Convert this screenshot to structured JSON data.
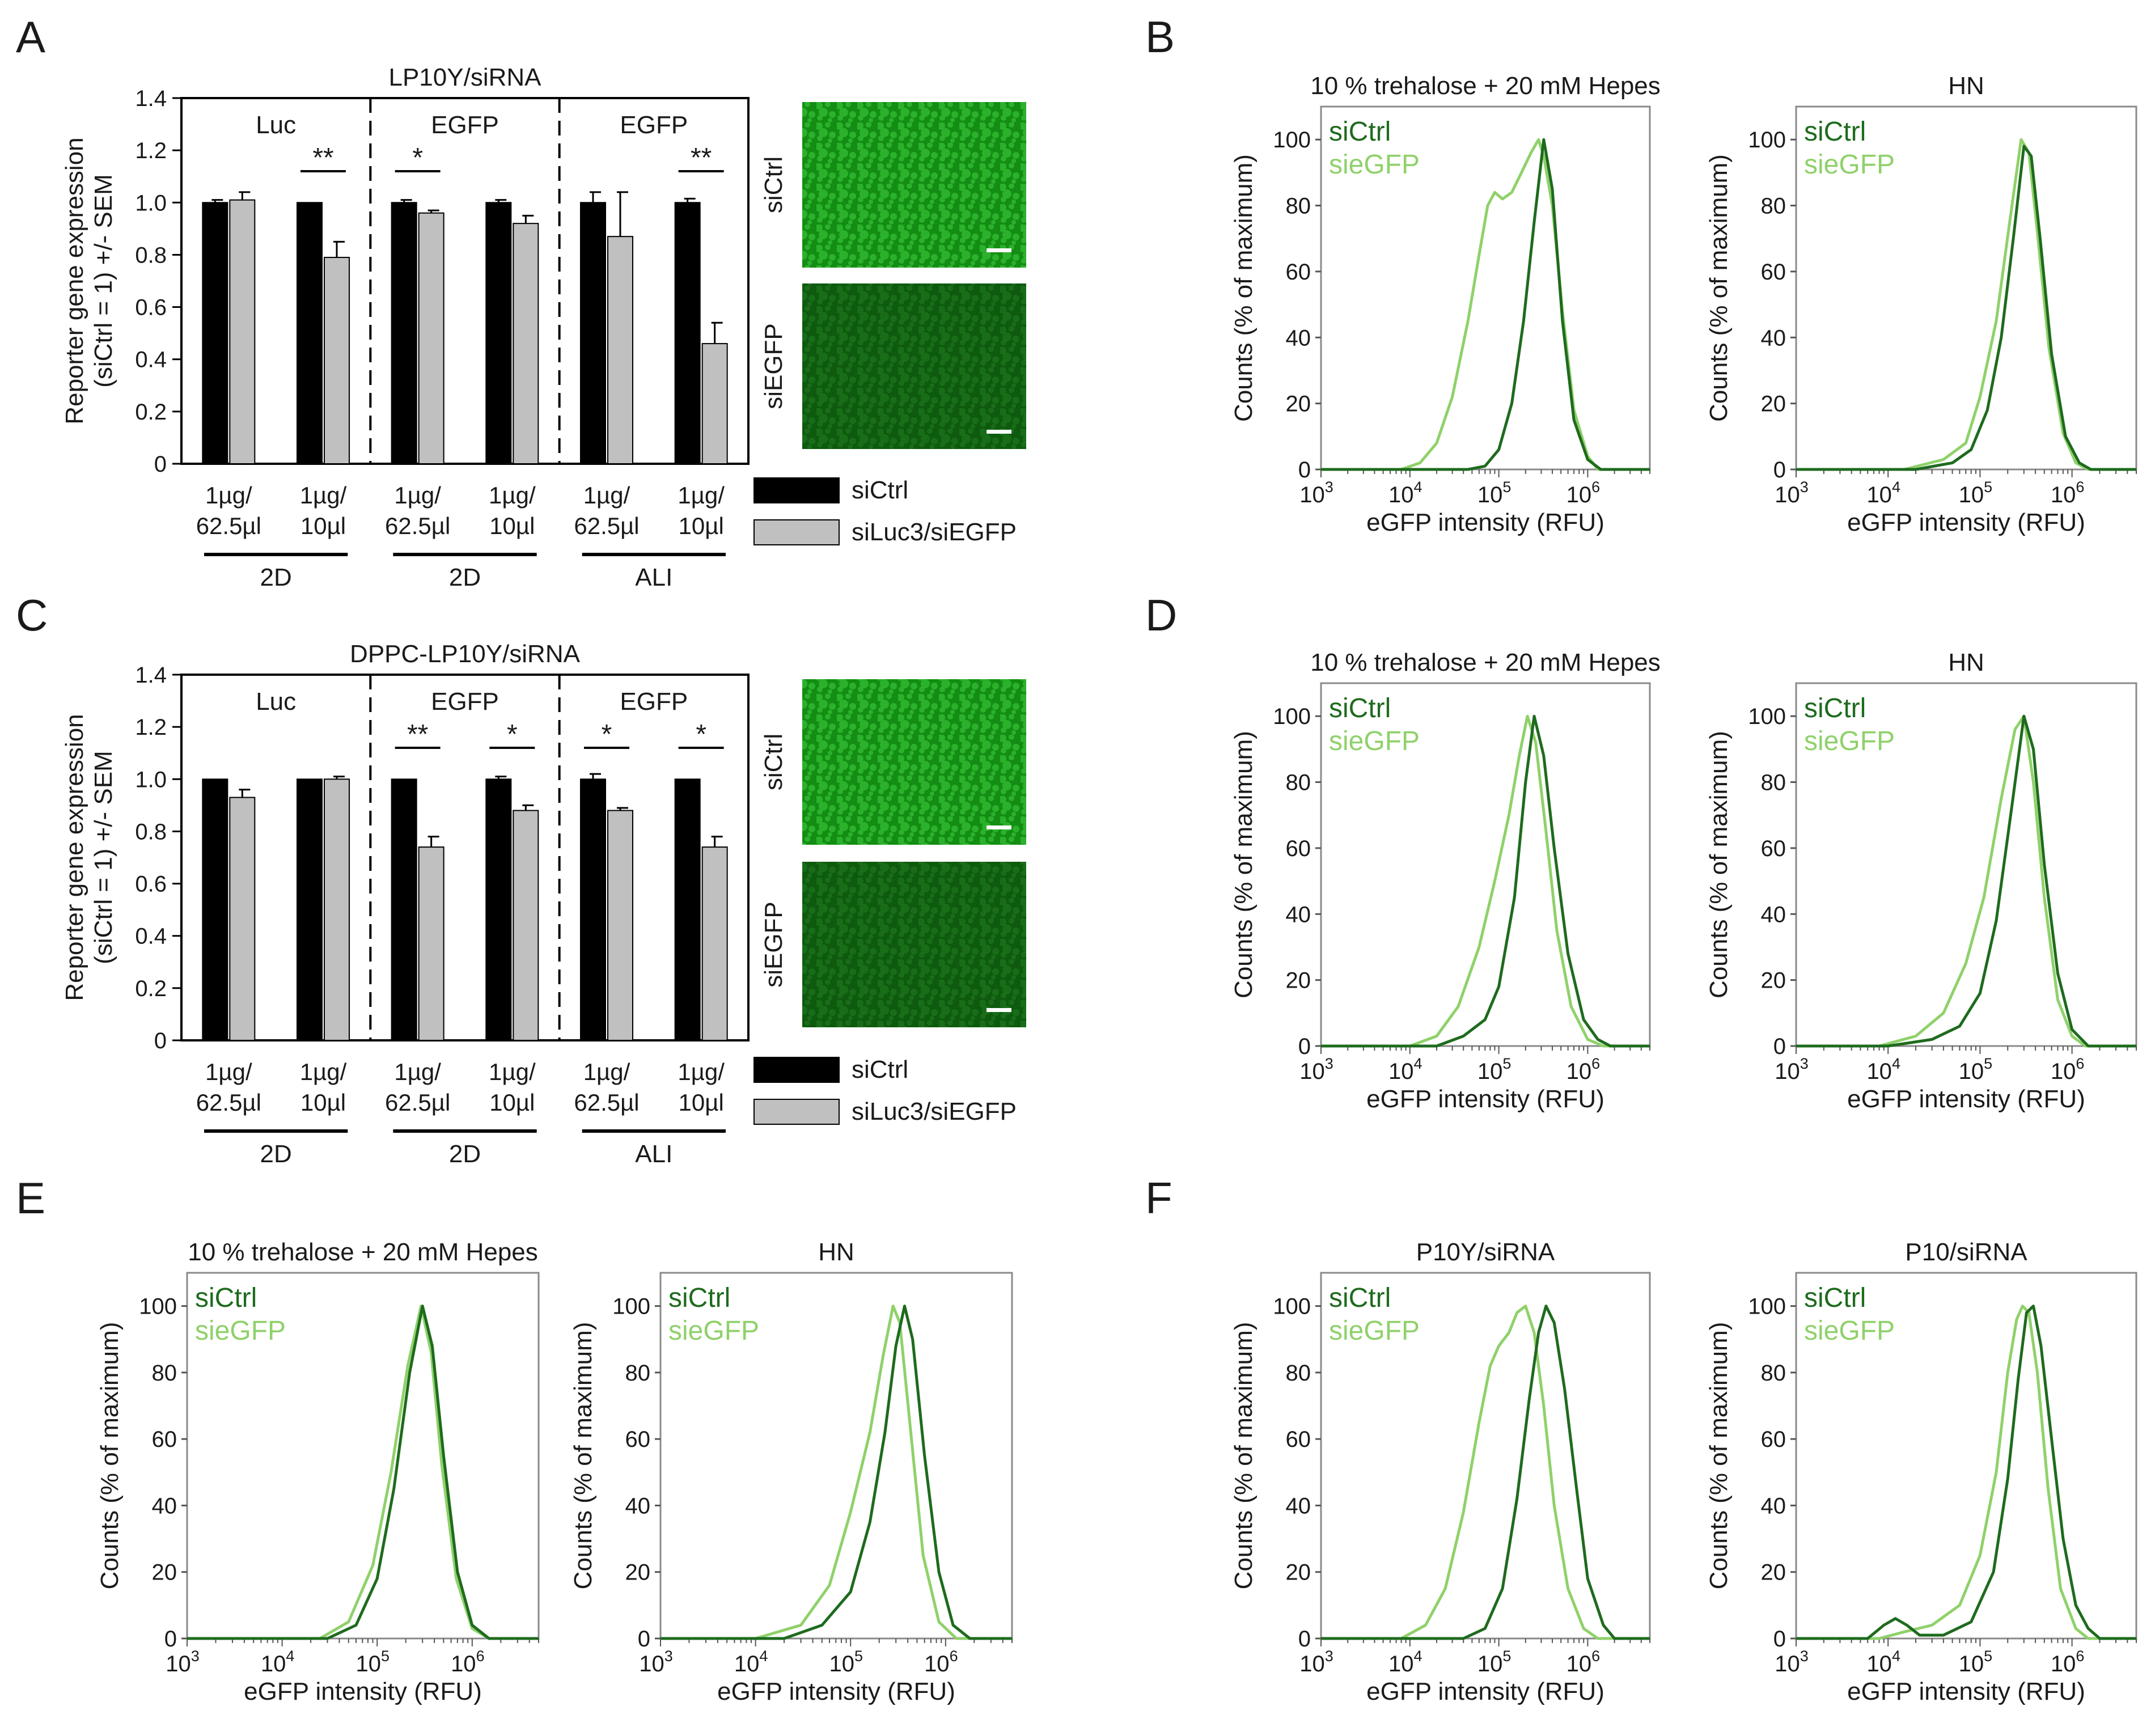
{
  "figure": {
    "panel_labels": [
      "A",
      "B",
      "C",
      "D",
      "E",
      "F"
    ]
  },
  "colors": {
    "bar_ctrl": "#000000",
    "bar_si": "#c0c0c0",
    "line_ctrl": "#1e6b1e",
    "line_si": "#8fd16a",
    "micrograph_bright": "#2fb82f",
    "micrograph_dim": "#1f7a1f"
  },
  "chart_data": [
    {
      "panel": "A",
      "type": "bar",
      "title": "LP10Y/siRNA",
      "ylabel": "Reporter gene expression (siCtrl = 1) +/- SEM",
      "ylabel_lines": [
        "Reporter gene expression",
        "(siCtrl = 1) +/- SEM"
      ],
      "ylim": [
        0,
        1.4
      ],
      "yticks": [
        "0",
        "0.2",
        "0.4",
        "0.6",
        "0.8",
        "1.0",
        "1.2",
        "1.4"
      ],
      "section_headers": [
        "Luc",
        "EGFP",
        "EGFP"
      ],
      "categories": [
        {
          "line1": "1µg/",
          "line2": "62.5µl"
        },
        {
          "line1": "1µg/",
          "line2": "10µl"
        },
        {
          "line1": "1µg/",
          "line2": "62.5µl"
        },
        {
          "line1": "1µg/",
          "line2": "10µl"
        },
        {
          "line1": "1µg/",
          "line2": "62.5µl"
        },
        {
          "line1": "1µg/",
          "line2": "10µl"
        }
      ],
      "groups": [
        "2D",
        "2D",
        "ALI"
      ],
      "series": [
        {
          "name": "siCtrl",
          "values": [
            1.0,
            1.0,
            1.0,
            1.0,
            1.0,
            1.0
          ],
          "errors": [
            0.01,
            0.0,
            0.01,
            0.01,
            0.04,
            0.015
          ]
        },
        {
          "name": "siLuc3/siEGFP",
          "values": [
            1.01,
            0.79,
            0.96,
            0.92,
            0.87,
            0.46
          ],
          "errors": [
            0.03,
            0.06,
            0.01,
            0.03,
            0.17,
            0.08
          ]
        }
      ],
      "significance": [
        "",
        "**",
        "*",
        "",
        "",
        "**"
      ],
      "micrograph_labels": [
        "siCtrl",
        "siEGFP"
      ]
    },
    {
      "panel": "C",
      "type": "bar",
      "title": "DPPC-LP10Y/siRNA",
      "ylabel": "Reporter gene expression (siCtrl = 1) +/- SEM",
      "ylabel_lines": [
        "Reporter gene expression",
        "(siCtrl = 1) +/- SEM"
      ],
      "ylim": [
        0,
        1.4
      ],
      "yticks": [
        "0",
        "0.2",
        "0.4",
        "0.6",
        "0.8",
        "1.0",
        "1.2",
        "1.4"
      ],
      "section_headers": [
        "Luc",
        "EGFP",
        "EGFP"
      ],
      "categories": [
        {
          "line1": "1µg/",
          "line2": "62.5µl"
        },
        {
          "line1": "1µg/",
          "line2": "10µl"
        },
        {
          "line1": "1µg/",
          "line2": "62.5µl"
        },
        {
          "line1": "1µg/",
          "line2": "10µl"
        },
        {
          "line1": "1µg/",
          "line2": "62.5µl"
        },
        {
          "line1": "1µg/",
          "line2": "10µl"
        }
      ],
      "groups": [
        "2D",
        "2D",
        "ALI"
      ],
      "series": [
        {
          "name": "siCtrl",
          "values": [
            1.0,
            1.0,
            1.0,
            1.0,
            1.0,
            1.0
          ],
          "errors": [
            0.0,
            0.0,
            0.0,
            0.01,
            0.02,
            0.0
          ]
        },
        {
          "name": "siLuc3/siEGFP",
          "values": [
            0.93,
            1.0,
            0.74,
            0.88,
            0.88,
            0.74
          ],
          "errors": [
            0.03,
            0.01,
            0.04,
            0.02,
            0.01,
            0.04
          ]
        }
      ],
      "significance": [
        "",
        "",
        "**",
        "*",
        "*",
        "*"
      ],
      "micrograph_labels": [
        "siCtrl",
        "siEGFP"
      ]
    },
    {
      "panel": "B",
      "type": "line",
      "title": "10 % trehalose + 20 mM Hepes",
      "xlabel": "eGFP intensity (RFU)",
      "ylabel": "Counts (% of maximum)",
      "x_scale": "log",
      "xlim": [
        1000,
        5000000
      ],
      "ylim": [
        0,
        110
      ],
      "yticks": [
        "0",
        "20",
        "40",
        "60",
        "80",
        "100"
      ],
      "xtick_base": "10",
      "xtick_exponents": [
        "3",
        "4",
        "5",
        "6"
      ],
      "series": [
        {
          "name": "siCtrl",
          "x": [
            45000,
            70000,
            100000,
            140000,
            190000,
            250000,
            320000,
            400000,
            520000,
            700000,
            1000000,
            1400000
          ],
          "y": [
            0,
            1,
            6,
            20,
            45,
            75,
            100,
            85,
            45,
            15,
            3,
            0
          ]
        },
        {
          "name": "sieGFP",
          "x": [
            8000,
            13000,
            20000,
            30000,
            45000,
            60000,
            75000,
            90000,
            110000,
            140000,
            180000,
            230000,
            280000,
            320000,
            400000,
            520000,
            700000,
            1000000,
            1300000
          ],
          "y": [
            0,
            2,
            8,
            22,
            45,
            65,
            80,
            84,
            82,
            84,
            90,
            96,
            100,
            95,
            80,
            48,
            18,
            4,
            0
          ]
        }
      ]
    },
    {
      "panel": "B",
      "type": "line",
      "title": "HN",
      "xlabel": "eGFP intensity (RFU)",
      "ylabel": "Counts (% of maximum)",
      "x_scale": "log",
      "xlim": [
        1000,
        5000000
      ],
      "ylim": [
        0,
        110
      ],
      "yticks": [
        "0",
        "20",
        "40",
        "60",
        "80",
        "100"
      ],
      "xtick_base": "10",
      "xtick_exponents": [
        "3",
        "4",
        "5",
        "6"
      ],
      "series": [
        {
          "name": "siCtrl",
          "x": [
            20000,
            50000,
            80000,
            120000,
            170000,
            230000,
            300000,
            360000,
            450000,
            600000,
            850000,
            1200000,
            1600000
          ],
          "y": [
            0,
            2,
            6,
            18,
            40,
            70,
            98,
            95,
            70,
            35,
            10,
            2,
            0
          ]
        },
        {
          "name": "sieGFP",
          "x": [
            15000,
            40000,
            70000,
            100000,
            150000,
            210000,
            280000,
            340000,
            420000,
            560000,
            800000,
            1100000,
            1500000
          ],
          "y": [
            0,
            3,
            8,
            22,
            45,
            75,
            100,
            96,
            72,
            37,
            11,
            2,
            0
          ]
        }
      ]
    },
    {
      "panel": "D",
      "type": "line",
      "title": "10 % trehalose + 20 mM Hepes",
      "xlabel": "eGFP intensity (RFU)",
      "ylabel": "Counts (% of maximum)",
      "x_scale": "log",
      "xlim": [
        1000,
        5000000
      ],
      "ylim": [
        0,
        110
      ],
      "yticks": [
        "0",
        "20",
        "40",
        "60",
        "80",
        "100"
      ],
      "xtick_base": "10",
      "xtick_exponents": [
        "3",
        "4",
        "5",
        "6"
      ],
      "series": [
        {
          "name": "siCtrl",
          "x": [
            20000,
            40000,
            70000,
            100000,
            150000,
            200000,
            250000,
            320000,
            420000,
            600000,
            900000,
            1300000,
            1800000
          ],
          "y": [
            0,
            3,
            8,
            18,
            45,
            80,
            100,
            88,
            60,
            28,
            8,
            2,
            0
          ]
        },
        {
          "name": "sieGFP",
          "x": [
            10000,
            20000,
            35000,
            60000,
            90000,
            130000,
            170000,
            210000,
            260000,
            340000,
            450000,
            650000,
            1000000,
            1500000
          ],
          "y": [
            0,
            3,
            12,
            30,
            50,
            70,
            88,
            100,
            92,
            65,
            35,
            12,
            2,
            0
          ]
        }
      ]
    },
    {
      "panel": "D",
      "type": "line",
      "title": "HN",
      "xlabel": "eGFP intensity (RFU)",
      "ylabel": "Counts (% of maximum)",
      "x_scale": "log",
      "xlim": [
        1000,
        5000000
      ],
      "ylim": [
        0,
        110
      ],
      "yticks": [
        "0",
        "20",
        "40",
        "60",
        "80",
        "100"
      ],
      "xtick_base": "10",
      "xtick_exponents": [
        "3",
        "4",
        "5",
        "6"
      ],
      "series": [
        {
          "name": "siCtrl",
          "x": [
            10000,
            30000,
            60000,
            100000,
            150000,
            220000,
            300000,
            380000,
            500000,
            700000,
            1000000,
            1500000
          ],
          "y": [
            0,
            2,
            6,
            16,
            38,
            72,
            100,
            90,
            55,
            22,
            5,
            0
          ]
        },
        {
          "name": "sieGFP",
          "x": [
            8000,
            20000,
            40000,
            70000,
            110000,
            170000,
            240000,
            300000,
            380000,
            500000,
            700000,
            1000000,
            1400000
          ],
          "y": [
            0,
            3,
            10,
            25,
            45,
            75,
            96,
            100,
            80,
            45,
            14,
            3,
            0
          ]
        }
      ]
    },
    {
      "panel": "E",
      "type": "line",
      "title": "10 % trehalose + 20 mM Hepes",
      "xlabel": "eGFP intensity (RFU)",
      "ylabel": "Counts (% of maximum)",
      "x_scale": "log",
      "xlim": [
        1000,
        5000000
      ],
      "ylim": [
        0,
        110
      ],
      "yticks": [
        "0",
        "20",
        "40",
        "60",
        "80",
        "100"
      ],
      "xtick_base": "10",
      "xtick_exponents": [
        "3",
        "4",
        "5",
        "6"
      ],
      "series": [
        {
          "name": "siCtrl",
          "x": [
            30000,
            60000,
            100000,
            150000,
            220000,
            300000,
            380000,
            500000,
            700000,
            1000000,
            1500000
          ],
          "y": [
            0,
            4,
            18,
            45,
            80,
            100,
            88,
            55,
            20,
            4,
            0
          ]
        },
        {
          "name": "sieGFP",
          "x": [
            25000,
            50000,
            90000,
            140000,
            210000,
            290000,
            370000,
            480000,
            680000,
            1000000,
            1500000
          ],
          "y": [
            0,
            5,
            22,
            50,
            82,
            100,
            86,
            52,
            18,
            3,
            0
          ]
        }
      ]
    },
    {
      "panel": "E",
      "type": "line",
      "title": "HN",
      "xlabel": "eGFP intensity (RFU)",
      "ylabel": "Counts (% of maximum)",
      "x_scale": "log",
      "xlim": [
        1000,
        5000000
      ],
      "ylim": [
        0,
        110
      ],
      "yticks": [
        "0",
        "20",
        "40",
        "60",
        "80",
        "100"
      ],
      "xtick_base": "10",
      "xtick_exponents": [
        "3",
        "4",
        "5",
        "6"
      ],
      "series": [
        {
          "name": "siCtrl",
          "x": [
            20000,
            50000,
            100000,
            160000,
            230000,
            300000,
            370000,
            450000,
            600000,
            850000,
            1200000,
            1800000
          ],
          "y": [
            0,
            4,
            14,
            35,
            62,
            88,
            100,
            90,
            55,
            20,
            4,
            0
          ]
        },
        {
          "name": "sieGFP",
          "x": [
            10000,
            30000,
            60000,
            100000,
            160000,
            220000,
            280000,
            330000,
            420000,
            580000,
            850000,
            1300000
          ],
          "y": [
            0,
            4,
            16,
            38,
            62,
            85,
            100,
            95,
            65,
            25,
            5,
            0
          ]
        }
      ]
    },
    {
      "panel": "F",
      "type": "line",
      "title": "P10Y/siRNA",
      "xlabel": "eGFP intensity (RFU)",
      "ylabel": "Counts (% of maximum)",
      "x_scale": "log",
      "xlim": [
        1000,
        5000000
      ],
      "ylim": [
        0,
        110
      ],
      "yticks": [
        "0",
        "20",
        "40",
        "60",
        "80",
        "100"
      ],
      "xtick_base": "10",
      "xtick_exponents": [
        "3",
        "4",
        "5",
        "6"
      ],
      "series": [
        {
          "name": "siCtrl",
          "x": [
            40000,
            70000,
            110000,
            160000,
            220000,
            280000,
            340000,
            420000,
            550000,
            750000,
            1000000,
            1500000,
            2000000
          ],
          "y": [
            0,
            3,
            15,
            42,
            72,
            92,
            100,
            95,
            75,
            45,
            18,
            4,
            0
          ]
        },
        {
          "name": "sieGFP",
          "x": [
            8000,
            15000,
            25000,
            40000,
            60000,
            80000,
            100000,
            130000,
            160000,
            200000,
            250000,
            320000,
            420000,
            600000,
            900000,
            1300000
          ],
          "y": [
            0,
            4,
            15,
            38,
            65,
            82,
            88,
            92,
            98,
            100,
            92,
            70,
            40,
            15,
            3,
            0
          ]
        }
      ]
    },
    {
      "panel": "F",
      "type": "line",
      "title": "P10/siRNA",
      "xlabel": "eGFP intensity (RFU)",
      "ylabel": "Counts (% of maximum)",
      "x_scale": "log",
      "xlim": [
        1000,
        5000000
      ],
      "ylim": [
        0,
        110
      ],
      "yticks": [
        "0",
        "20",
        "40",
        "60",
        "80",
        "100"
      ],
      "xtick_base": "10",
      "xtick_exponents": [
        "3",
        "4",
        "5",
        "6"
      ],
      "series": [
        {
          "name": "siCtrl",
          "x": [
            6000,
            9000,
            12000,
            16000,
            22000,
            40000,
            80000,
            140000,
            200000,
            260000,
            320000,
            380000,
            460000,
            600000,
            800000,
            1100000,
            1500000,
            2000000
          ],
          "y": [
            0,
            4,
            6,
            4,
            1,
            1,
            5,
            20,
            48,
            78,
            98,
            100,
            88,
            60,
            30,
            10,
            3,
            0
          ]
        },
        {
          "name": "sieGFP",
          "x": [
            8000,
            15000,
            30000,
            60000,
            100000,
            150000,
            200000,
            250000,
            290000,
            340000,
            420000,
            550000,
            750000,
            1100000,
            1500000
          ],
          "y": [
            0,
            2,
            4,
            10,
            25,
            50,
            80,
            96,
            100,
            98,
            80,
            45,
            15,
            3,
            0
          ]
        }
      ]
    }
  ]
}
